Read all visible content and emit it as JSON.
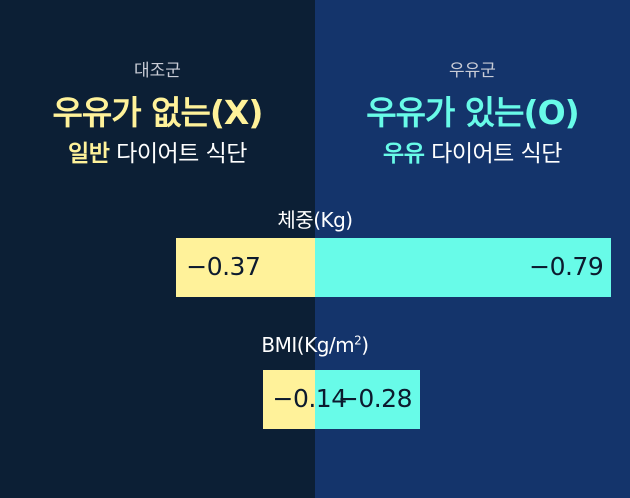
{
  "colors": {
    "left_bg": "#0c1f35",
    "right_bg": "#14346b",
    "left_accent": "#fff29a",
    "right_accent": "#68fbe8",
    "text_dark": "#0c1a2e"
  },
  "groups": {
    "left": {
      "label": "대조군",
      "title": "우유가 없는(X)",
      "sub_bold": "일반",
      "sub_rest": " 다이어트 식단"
    },
    "right": {
      "label": "우유군",
      "title": "우유가 있는(O)",
      "sub_bold": "우유",
      "sub_rest": " 다이어트 식단"
    }
  },
  "chart_data": [
    {
      "type": "bar",
      "title": "체중(Kg)",
      "series": [
        {
          "name": "대조군",
          "value": -0.37,
          "label": "−0.37"
        },
        {
          "name": "우유군",
          "value": -0.79,
          "label": "−0.79"
        }
      ]
    },
    {
      "type": "bar",
      "title": "BMI(Kg/m²)",
      "title_base": "BMI(Kg/m",
      "title_sup": "2",
      "title_close": ")",
      "series": [
        {
          "name": "대조군",
          "value": -0.14,
          "label": "−0.14"
        },
        {
          "name": "우유군",
          "value": -0.28,
          "label": "−0.28"
        }
      ]
    }
  ]
}
